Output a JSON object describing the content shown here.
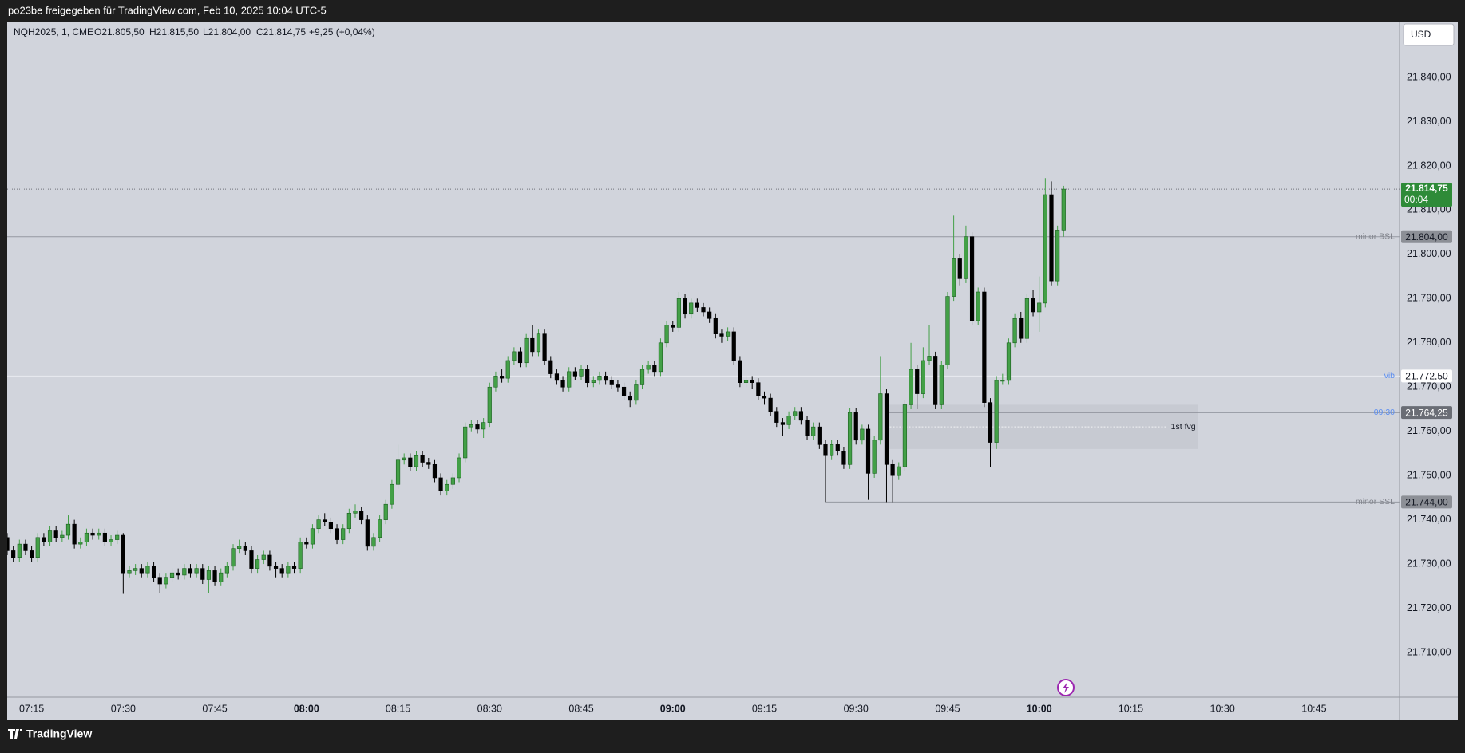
{
  "header": {
    "title": "po23be freigegeben für TradingView.com, Feb 10, 2025 10:04 UTC-5"
  },
  "footer": {
    "brand": "TradingView"
  },
  "chart_data": {
    "type": "candlestick",
    "info": [
      "NQH2025, 1, CME",
      "O21.805,50",
      "H21.815,50",
      "L21.804,00",
      "C21.814,75",
      "+9,25 (+0,04%)"
    ],
    "currency": "USD",
    "up_color": "#43a047",
    "down_color": "#000000",
    "x": [
      "07:11",
      "07:12",
      "07:13",
      "07:14",
      "07:15",
      "07:16",
      "07:17",
      "07:18",
      "07:19",
      "07:20",
      "07:21",
      "07:22",
      "07:23",
      "07:24",
      "07:25",
      "07:26",
      "07:27",
      "07:28",
      "07:29",
      "07:30",
      "07:31",
      "07:32",
      "07:33",
      "07:34",
      "07:35",
      "07:36",
      "07:37",
      "07:38",
      "07:39",
      "07:40",
      "07:41",
      "07:42",
      "07:43",
      "07:44",
      "07:45",
      "07:46",
      "07:47",
      "07:48",
      "07:49",
      "07:50",
      "07:51",
      "07:52",
      "07:53",
      "07:54",
      "07:55",
      "07:56",
      "07:57",
      "07:58",
      "07:59",
      "08:00",
      "08:01",
      "08:02",
      "08:03",
      "08:04",
      "08:05",
      "08:06",
      "08:07",
      "08:08",
      "08:09",
      "08:10",
      "08:11",
      "08:12",
      "08:13",
      "08:14",
      "08:15",
      "08:16",
      "08:17",
      "08:18",
      "08:19",
      "08:20",
      "08:21",
      "08:22",
      "08:23",
      "08:24",
      "08:25",
      "08:26",
      "08:27",
      "08:28",
      "08:29",
      "08:30",
      "08:31",
      "08:32",
      "08:33",
      "08:34",
      "08:35",
      "08:36",
      "08:37",
      "08:38",
      "08:39",
      "08:40",
      "08:41",
      "08:42",
      "08:43",
      "08:44",
      "08:45",
      "08:46",
      "08:47",
      "08:48",
      "08:49",
      "08:50",
      "08:51",
      "08:52",
      "08:53",
      "08:54",
      "08:55",
      "08:56",
      "08:57",
      "08:58",
      "08:59",
      "09:00",
      "09:01",
      "09:02",
      "09:03",
      "09:04",
      "09:05",
      "09:06",
      "09:07",
      "09:08",
      "09:09",
      "09:10",
      "09:11",
      "09:12",
      "09:13",
      "09:14",
      "09:15",
      "09:16",
      "09:17",
      "09:18",
      "09:19",
      "09:20",
      "09:21",
      "09:22",
      "09:23",
      "09:24",
      "09:25",
      "09:26",
      "09:27",
      "09:28",
      "09:29",
      "09:30",
      "09:31",
      "09:32",
      "09:33",
      "09:34",
      "09:35",
      "09:36",
      "09:37",
      "09:38",
      "09:39",
      "09:40",
      "09:41",
      "09:42",
      "09:43",
      "09:44",
      "09:45",
      "09:46",
      "09:47",
      "09:48",
      "09:49",
      "09:50",
      "09:51",
      "09:52",
      "09:53",
      "09:54",
      "09:55",
      "09:56",
      "09:57",
      "09:58",
      "09:59",
      "10:00",
      "10:01",
      "10:02",
      "10:03",
      "10:04"
    ],
    "open": [
      21736,
      21733,
      21731.5,
      21734.5,
      21733,
      21731.5,
      21736,
      21735,
      21737.5,
      21736,
      21736.5,
      21739,
      21734.5,
      21735,
      21737,
      21736.5,
      21737,
      21735,
      21735.5,
      21736.5,
      21728,
      21728.5,
      21729,
      21728,
      21729.5,
      21727,
      21725.5,
      21727,
      21728,
      21727.5,
      21729,
      21728,
      21729,
      21726.5,
      21728.5,
      21726,
      21728,
      21729.5,
      21733.5,
      21734,
      21733,
      21729,
      21731,
      21732,
      21729.5,
      21729,
      21728,
      21729.5,
      21729,
      21735,
      21734.5,
      21738,
      21740,
      21739.5,
      21738,
      21735.5,
      21738,
      21741.5,
      21742,
      21740,
      21734,
      21736,
      21740,
      21743.5,
      21748,
      21753.5,
      21754,
      21752,
      21754.5,
      21753,
      21752.5,
      21749.5,
      21746.5,
      21748,
      21749.5,
      21754,
      21761,
      21761.5,
      21760.5,
      21762,
      21770,
      21772.5,
      21772,
      21776,
      21778,
      21775.5,
      21781,
      21778,
      21782,
      21776,
      21773,
      21771.5,
      21770,
      21773.5,
      21772.5,
      21774,
      21771,
      21771.5,
      21772.5,
      21771.5,
      21770.5,
      21770,
      21768,
      21767,
      21770.5,
      21774,
      21775,
      21773.5,
      21780,
      21784,
      21783.5,
      21790,
      21786.5,
      21789,
      21788,
      21787,
      21785.5,
      21782,
      21781.5,
      21782.5,
      21776,
      21771,
      21771.5,
      21771,
      21768,
      21767.5,
      21764.5,
      21762,
      21761.5,
      21763.5,
      21764.5,
      21762.5,
      21759,
      21761,
      21757,
      21754.5,
      21757,
      21755.5,
      21752.5,
      21764.25,
      21758,
      21760.5,
      21750.5,
      21758,
      21768.5,
      21752.5,
      21750,
      21752,
      21766,
      21774,
      21768.5,
      21776,
      21777,
      21766,
      21775,
      21790.5,
      21799,
      21794.5,
      21804,
      21785,
      21791.5,
      21766.5,
      21757.5,
      21771.5,
      21771.5,
      21780,
      21785.5,
      21781,
      21790,
      21787,
      21789,
      21813.5,
      21794,
      21805.5
    ],
    "high": [
      21737,
      21734,
      21735.5,
      21735.5,
      21734,
      21737,
      21737,
      21738.5,
      21738.5,
      21737.5,
      21741,
      21740,
      21736,
      21738,
      21738,
      21738,
      21738,
      21736.5,
      21737.5,
      21737,
      21729.5,
      21730,
      21730,
      21730.5,
      21730.5,
      21728,
      21728,
      21729,
      21729,
      21730,
      21730,
      21730,
      21730,
      21729.5,
      21729.5,
      21729,
      21730.5,
      21734.5,
      21735.5,
      21735,
      21734,
      21732,
      21733,
      21733,
      21730.5,
      21730,
      21730.5,
      21730.5,
      21736,
      21736,
      21739,
      21741,
      21741.5,
      21740.5,
      21739,
      21739,
      21742.5,
      21743.5,
      21743,
      21741,
      21737,
      21741,
      21744.5,
      21749,
      21757,
      21755,
      21755,
      21755.5,
      21755.5,
      21754,
      21753.5,
      21750.5,
      21749,
      21750.5,
      21755,
      21762,
      21762.5,
      21762.5,
      21763,
      21771,
      21773.5,
      21774,
      21777,
      21779,
      21779,
      21782,
      21784,
      21783,
      21783,
      21777,
      21774,
      21772.5,
      21774.5,
      21774.5,
      21775,
      21775,
      21772.5,
      21773.5,
      21773.5,
      21772.5,
      21771.5,
      21771,
      21769,
      21771.5,
      21775,
      21776,
      21776,
      21781,
      21785,
      21785,
      21791.5,
      21791,
      21790,
      21790,
      21789,
      21788,
      21786.5,
      21783,
      21783.5,
      21783.5,
      21777,
      21772.5,
      21772.5,
      21772,
      21769,
      21768.5,
      21765.5,
      21763,
      21764.5,
      21765.5,
      21765.5,
      21763.5,
      21762,
      21762,
      21758,
      21758,
      21758,
      21756.5,
      21765.25,
      21765.25,
      21761.5,
      21761.5,
      21759,
      21777,
      21769.5,
      21753.5,
      21753,
      21767,
      21780,
      21775,
      21779,
      21784,
      21778,
      21776,
      21791.5,
      21808.75,
      21800,
      21806.5,
      21805,
      21792.5,
      21792.5,
      21767.5,
      21772.5,
      21773,
      21781,
      21786.5,
      21787,
      21791,
      21792,
      21795,
      21817.25,
      21816.5,
      21806.5,
      21815.5
    ],
    "low": [
      21732,
      21730.5,
      21730.5,
      21732,
      21730.5,
      21730.5,
      21734,
      21734,
      21735,
      21735,
      21735.5,
      21733.5,
      21733.5,
      21734,
      21735.5,
      21735.5,
      21734,
      21734,
      21734.5,
      21723.25,
      21727,
      21727.5,
      21727,
      21727,
      21726,
      21723.5,
      21724.5,
      21726,
      21726.5,
      21726.5,
      21727,
      21727,
      21725.5,
      21723.5,
      21725,
      21725,
      21727,
      21728.5,
      21732.5,
      21732,
      21728,
      21728,
      21730,
      21728.5,
      21727,
      21727,
      21727,
      21728,
      21728,
      21733.5,
      21733.5,
      21737,
      21738.5,
      21737,
      21734.5,
      21734.5,
      21737,
      21740.5,
      21739,
      21733,
      21733,
      21735,
      21739,
      21742.5,
      21747,
      21752.5,
      21751,
      21751,
      21752,
      21751.5,
      21748.5,
      21745.5,
      21745.5,
      21747,
      21748.5,
      21753,
      21760,
      21759.5,
      21758.5,
      21761,
      21769,
      21771,
      21771,
      21775,
      21774.5,
      21774.5,
      21777,
      21777,
      21775,
      21772,
      21770.5,
      21769,
      21769,
      21771.5,
      21771.5,
      21770,
      21770,
      21770.5,
      21770.5,
      21769.5,
      21769,
      21767,
      21765.5,
      21766,
      21769.5,
      21773,
      21772.5,
      21772.5,
      21779,
      21782.5,
      21782.5,
      21785.5,
      21785.5,
      21787,
      21786,
      21784.5,
      21781,
      21780,
      21780.5,
      21775,
      21770,
      21770,
      21769.5,
      21767,
      21766,
      21763.5,
      21761,
      21759,
      21760.5,
      21762.5,
      21761.5,
      21758,
      21758,
      21756,
      21744,
      21753.5,
      21754.5,
      21751.5,
      21751.5,
      21757,
      21757,
      21744.5,
      21749.5,
      21757,
      21744,
      21744,
      21749,
      21751,
      21765,
      21765,
      21767.5,
      21775,
      21765,
      21765,
      21774,
      21789.5,
      21793,
      21793.5,
      21784,
      21784,
      21765.5,
      21752,
      21756,
      21770.5,
      21770.5,
      21779,
      21780,
      21780,
      21786,
      21782.5,
      21788,
      21793,
      21793,
      21804
    ],
    "close": [
      21733,
      21731.5,
      21734.5,
      21733,
      21731.5,
      21736,
      21735,
      21737.5,
      21736,
      21736.5,
      21739,
      21734.5,
      21735,
      21737,
      21736.5,
      21737,
      21735,
      21735.5,
      21736.5,
      21728,
      21728.5,
      21729,
      21728,
      21729.5,
      21727,
      21725.5,
      21727,
      21728,
      21727.5,
      21729,
      21728,
      21729,
      21726.5,
      21728.5,
      21726,
      21728,
      21729.5,
      21733.5,
      21734,
      21733,
      21729,
      21731,
      21732,
      21729.5,
      21729,
      21728,
      21729.5,
      21729,
      21735,
      21734.5,
      21738,
      21740,
      21739.5,
      21738,
      21735.5,
      21738,
      21741.5,
      21742,
      21740,
      21734,
      21736,
      21740,
      21743.5,
      21748,
      21753.5,
      21754,
      21752,
      21754.5,
      21753,
      21752.5,
      21749.5,
      21746.5,
      21748,
      21749.5,
      21754,
      21761,
      21761.5,
      21760.5,
      21762,
      21770,
      21772.5,
      21772,
      21776,
      21778,
      21775.5,
      21781,
      21778,
      21782,
      21776,
      21773,
      21771.5,
      21770,
      21773.5,
      21772.5,
      21774,
      21771,
      21771.5,
      21772.5,
      21771.5,
      21770.5,
      21770,
      21768,
      21767,
      21770.5,
      21774,
      21775,
      21773.5,
      21780,
      21784,
      21783.5,
      21790,
      21786.5,
      21789,
      21788,
      21787,
      21785.5,
      21782,
      21781.5,
      21782.5,
      21776,
      21771,
      21771.5,
      21771,
      21768,
      21767.5,
      21764.5,
      21762,
      21761.5,
      21763.5,
      21764.5,
      21762.5,
      21759,
      21761,
      21757,
      21754.5,
      21757,
      21755.5,
      21752.5,
      21764.25,
      21758,
      21760.5,
      21750.5,
      21758,
      21768.5,
      21752.5,
      21750,
      21752,
      21766,
      21774,
      21768.5,
      21776,
      21777,
      21766,
      21775,
      21790.5,
      21799,
      21794.5,
      21804,
      21785,
      21791.5,
      21766.5,
      21757.5,
      21771.5,
      21771.5,
      21780,
      21785.5,
      21781,
      21790,
      21787,
      21789,
      21813.5,
      21794,
      21805.5,
      21814.75
    ],
    "xlim": [
      "07:11",
      "10:59"
    ],
    "xticks": [
      "07:15",
      "07:30",
      "07:45",
      "08:00",
      "08:15",
      "08:30",
      "08:45",
      "09:00",
      "09:15",
      "09:30",
      "09:45",
      "10:00",
      "10:15",
      "10:30",
      "10:45"
    ],
    "ylim": [
      21699.9,
      21852.45
    ],
    "yticks": [
      {
        "value": 21710,
        "label": "21.710,00"
      },
      {
        "value": 21720,
        "label": "21.720,00"
      },
      {
        "value": 21730,
        "label": "21.730,00"
      },
      {
        "value": 21740,
        "label": "21.740,00"
      },
      {
        "value": 21750,
        "label": "21.750,00"
      },
      {
        "value": 21760,
        "label": "21.760,00"
      },
      {
        "value": 21770,
        "label": "21.770,00"
      },
      {
        "value": 21780,
        "label": "21.780,00"
      },
      {
        "value": 21790,
        "label": "21.790,00"
      },
      {
        "value": 21800,
        "label": "21.800,00"
      },
      {
        "value": 21810,
        "label": "21.810,00"
      },
      {
        "value": 21820,
        "label": "21.820,00"
      },
      {
        "value": 21830,
        "label": "21.830,00"
      },
      {
        "value": 21840,
        "label": "21.840,00"
      }
    ],
    "last_price": {
      "value": 21814.75,
      "label": "21.814,75",
      "countdown": "00:04",
      "color": "#2e8b38"
    },
    "levels": [
      {
        "name": "minor BSL",
        "value": 21804,
        "label": "21.804,00",
        "color": "#8c8f96"
      },
      {
        "name": "vib",
        "value": 21772.5,
        "label": "21.772,50",
        "color": "#ffffff"
      },
      {
        "name": "09:30",
        "value": 21764.25,
        "label": "21.764,25",
        "color": "#6a6d75",
        "from": "09:35"
      },
      {
        "name": "minor SSL",
        "value": 21744,
        "label": "21.744,00",
        "color": "#8c8f96",
        "from": "09:25"
      }
    ],
    "fvg": {
      "name": "1st fvg",
      "from": "09:35",
      "to": "10:26",
      "top": 21766,
      "bottom": 21756,
      "mid": 21761
    }
  }
}
